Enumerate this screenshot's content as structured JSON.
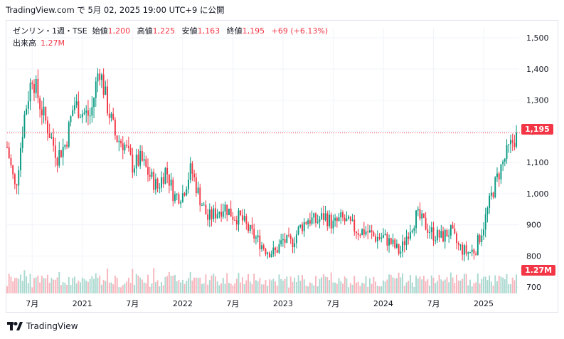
{
  "caption": "TradingView.com で 5月 02, 2025 19:00 UTC+9 に公開",
  "legend": {
    "symbol": "ゼンリン・1週・TSE",
    "open_label": "始値",
    "open": "1,200",
    "high_label": "高値",
    "high": "1,225",
    "low_label": "安値",
    "low": "1,163",
    "close_label": "終値",
    "close": "1,195",
    "change": "+69 (+6.13%)",
    "volume_label": "出来高",
    "volume": "1.27M"
  },
  "badges": {
    "price": "1,195",
    "volume": "1.27M"
  },
  "brand": "TradingView",
  "colors": {
    "up": "#089981",
    "down": "#f23645",
    "up_vol": "#a9d8cf",
    "down_vol": "#f7b4bc"
  },
  "chart_data": {
    "type": "candlestick",
    "y_axis": {
      "ticks": [
        "1,500",
        "1,400",
        "1,300",
        "1,200",
        "1,100",
        "1,000",
        "900",
        "800",
        "700"
      ],
      "range": [
        680,
        1530
      ]
    },
    "x_axis": {
      "ticks": [
        "7月",
        "2021",
        "7月",
        "2022",
        "7月",
        "2023",
        "7月",
        "2024",
        "7月",
        "2025"
      ]
    },
    "last_price": 1195,
    "last_volume": "1.27M",
    "anchors": [
      [
        "2020-04",
        1150
      ],
      [
        "2020-05",
        1010
      ],
      [
        "2020-06",
        1240
      ],
      [
        "2020-07",
        1380
      ],
      [
        "2020-08",
        1280
      ],
      [
        "2020-09",
        1200
      ],
      [
        "2020-10",
        1120
      ],
      [
        "2020-11",
        1160
      ],
      [
        "2020-12",
        1290
      ],
      [
        "2021-01",
        1260
      ],
      [
        "2021-02",
        1250
      ],
      [
        "2021-03",
        1410
      ],
      [
        "2021-04",
        1280
      ],
      [
        "2021-05",
        1180
      ],
      [
        "2021-06",
        1160
      ],
      [
        "2021-07",
        1090
      ],
      [
        "2021-08",
        1110
      ],
      [
        "2021-09",
        1060
      ],
      [
        "2021-10",
        1020
      ],
      [
        "2021-11",
        1080
      ],
      [
        "2021-12",
        990
      ],
      [
        "2022-01",
        1000
      ],
      [
        "2022-02",
        1080
      ],
      [
        "2022-03",
        990
      ],
      [
        "2022-04",
        920
      ],
      [
        "2022-05",
        940
      ],
      [
        "2022-06",
        960
      ],
      [
        "2022-07",
        930
      ],
      [
        "2022-08",
        920
      ],
      [
        "2022-09",
        880
      ],
      [
        "2022-10",
        850
      ],
      [
        "2022-11",
        820
      ],
      [
        "2022-12",
        810
      ],
      [
        "2023-01",
        850
      ],
      [
        "2023-02",
        840
      ],
      [
        "2023-03",
        890
      ],
      [
        "2023-04",
        920
      ],
      [
        "2023-05",
        910
      ],
      [
        "2023-06",
        930
      ],
      [
        "2023-07",
        900
      ],
      [
        "2023-08",
        920
      ],
      [
        "2023-09",
        900
      ],
      [
        "2023-10",
        880
      ],
      [
        "2023-11",
        880
      ],
      [
        "2023-12",
        860
      ],
      [
        "2024-01",
        860
      ],
      [
        "2024-02",
        840
      ],
      [
        "2024-03",
        810
      ],
      [
        "2024-04",
        880
      ],
      [
        "2024-05",
        930
      ],
      [
        "2024-06",
        900
      ],
      [
        "2024-07",
        870
      ],
      [
        "2024-08",
        860
      ],
      [
        "2024-09",
        880
      ],
      [
        "2024-10",
        830
      ],
      [
        "2024-11",
        810
      ],
      [
        "2024-12",
        820
      ],
      [
        "2025-01",
        900
      ],
      [
        "2025-02",
        1000
      ],
      [
        "2025-03",
        1080
      ],
      [
        "2025-04",
        1140
      ],
      [
        "2025-05",
        1195
      ]
    ]
  }
}
